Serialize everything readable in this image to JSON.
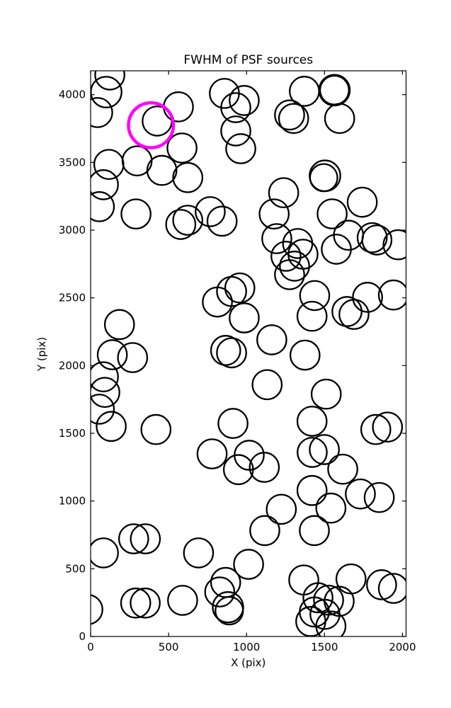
{
  "figure": {
    "title": "FWHM of PSF sources"
  },
  "chart_data": {
    "type": "scatter",
    "title": "FWHM of PSF sources",
    "xlabel": "X (pix)",
    "ylabel": "Y (pix)",
    "xlim": [
      0,
      2023
    ],
    "ylim": [
      0,
      4176
    ],
    "xticks": [
      0,
      500,
      1000,
      1500,
      2000
    ],
    "yticks": [
      0,
      500,
      1000,
      1500,
      2000,
      2500,
      3000,
      3500,
      4000
    ],
    "grid": false,
    "legend": null,
    "marker": {
      "shape": "open-circle",
      "fill": "none",
      "color": "#000000",
      "radius_px": 20.7,
      "stroke_px": 2.3
    },
    "points": [
      [
        123,
        4145
      ],
      [
        100,
        4019,
        21.7
      ],
      [
        45,
        3868
      ],
      [
        427,
        3805
      ],
      [
        563,
        3910
      ],
      [
        858,
        4009
      ],
      [
        985,
        3957
      ],
      [
        931,
        3904
      ],
      [
        931,
        3732
      ],
      [
        963,
        3601
      ],
      [
        586,
        3606
      ],
      [
        117,
        3485
      ],
      [
        298,
        3511
      ],
      [
        457,
        3441
      ],
      [
        82,
        3335
      ],
      [
        56,
        3173
      ],
      [
        623,
        3388
      ],
      [
        291,
        3119
      ],
      [
        578,
        3042
      ],
      [
        623,
        3073
      ],
      [
        767,
        3136
      ],
      [
        843,
        3066
      ],
      [
        1371,
        4025
      ],
      [
        1564,
        4033,
        21,
        3.6
      ],
      [
        1276,
        3850
      ],
      [
        1302,
        3824
      ],
      [
        1597,
        3824
      ],
      [
        1503,
        3401,
        21.7
      ],
      [
        1495,
        3387,
        19.3
      ],
      [
        1238,
        3276
      ],
      [
        1177,
        3119
      ],
      [
        1549,
        3120
      ],
      [
        1742,
        3206
      ],
      [
        1194,
        2937
      ],
      [
        1328,
        2901
      ],
      [
        1362,
        2822
      ],
      [
        1253,
        2807
      ],
      [
        1308,
        2734
      ],
      [
        1276,
        2671
      ],
      [
        1576,
        2859
      ],
      [
        1654,
        2962
      ],
      [
        1806,
        2944
      ],
      [
        1836,
        2927
      ],
      [
        1972,
        2892
      ],
      [
        185,
        2303
      ],
      [
        139,
        2080
      ],
      [
        269,
        2059
      ],
      [
        82,
        1917
      ],
      [
        91,
        1802
      ],
      [
        56,
        1678
      ],
      [
        132,
        1551
      ],
      [
        419,
        1528
      ],
      [
        813,
        2469
      ],
      [
        904,
        2547
      ],
      [
        957,
        2573
      ],
      [
        985,
        2352
      ],
      [
        866,
        2112
      ],
      [
        904,
        2094
      ],
      [
        913,
        1573
      ],
      [
        779,
        1348
      ],
      [
        1437,
        2517
      ],
      [
        1420,
        2364
      ],
      [
        1644,
        2399
      ],
      [
        1689,
        2378
      ],
      [
        1776,
        2504
      ],
      [
        1942,
        2521
      ],
      [
        1162,
        2190
      ],
      [
        1375,
        2077
      ],
      [
        1132,
        1859
      ],
      [
        1511,
        1789
      ],
      [
        1420,
        1589
      ],
      [
        1829,
        1528
      ],
      [
        1904,
        1546
      ],
      [
        1017,
        1338
      ],
      [
        948,
        1232
      ],
      [
        1114,
        1249
      ],
      [
        1421,
        1359
      ],
      [
        1499,
        1380
      ],
      [
        1617,
        1235
      ],
      [
        1420,
        1078
      ],
      [
        1730,
        1052
      ],
      [
        1851,
        1026
      ],
      [
        1223,
        939
      ],
      [
        1117,
        782
      ],
      [
        1541,
        948
      ],
      [
        1435,
        782
      ],
      [
        82,
        617
      ],
      [
        276,
        721
      ],
      [
        351,
        721
      ],
      [
        692,
        617
      ],
      [
        1013,
        533
      ],
      [
        -18,
        199
      ],
      [
        289,
        247
      ],
      [
        350,
        247
      ],
      [
        590,
        267
      ],
      [
        1367,
        417
      ],
      [
        1670,
        425
      ],
      [
        1866,
        382
      ],
      [
        1942,
        355
      ],
      [
        1458,
        286
      ],
      [
        1526,
        268
      ],
      [
        1594,
        260
      ],
      [
        1435,
        181
      ],
      [
        1503,
        164
      ],
      [
        1412,
        111
      ],
      [
        1541,
        77
      ],
      [
        866,
        399
      ],
      [
        828,
        329
      ],
      [
        881,
        216,
        21.5
      ],
      [
        889,
        190,
        19.5
      ]
    ],
    "highlight": {
      "x": 387,
      "y": 3774,
      "radius_px": 31.7,
      "stroke_px": 4.5,
      "color": "#ff00ff"
    }
  }
}
